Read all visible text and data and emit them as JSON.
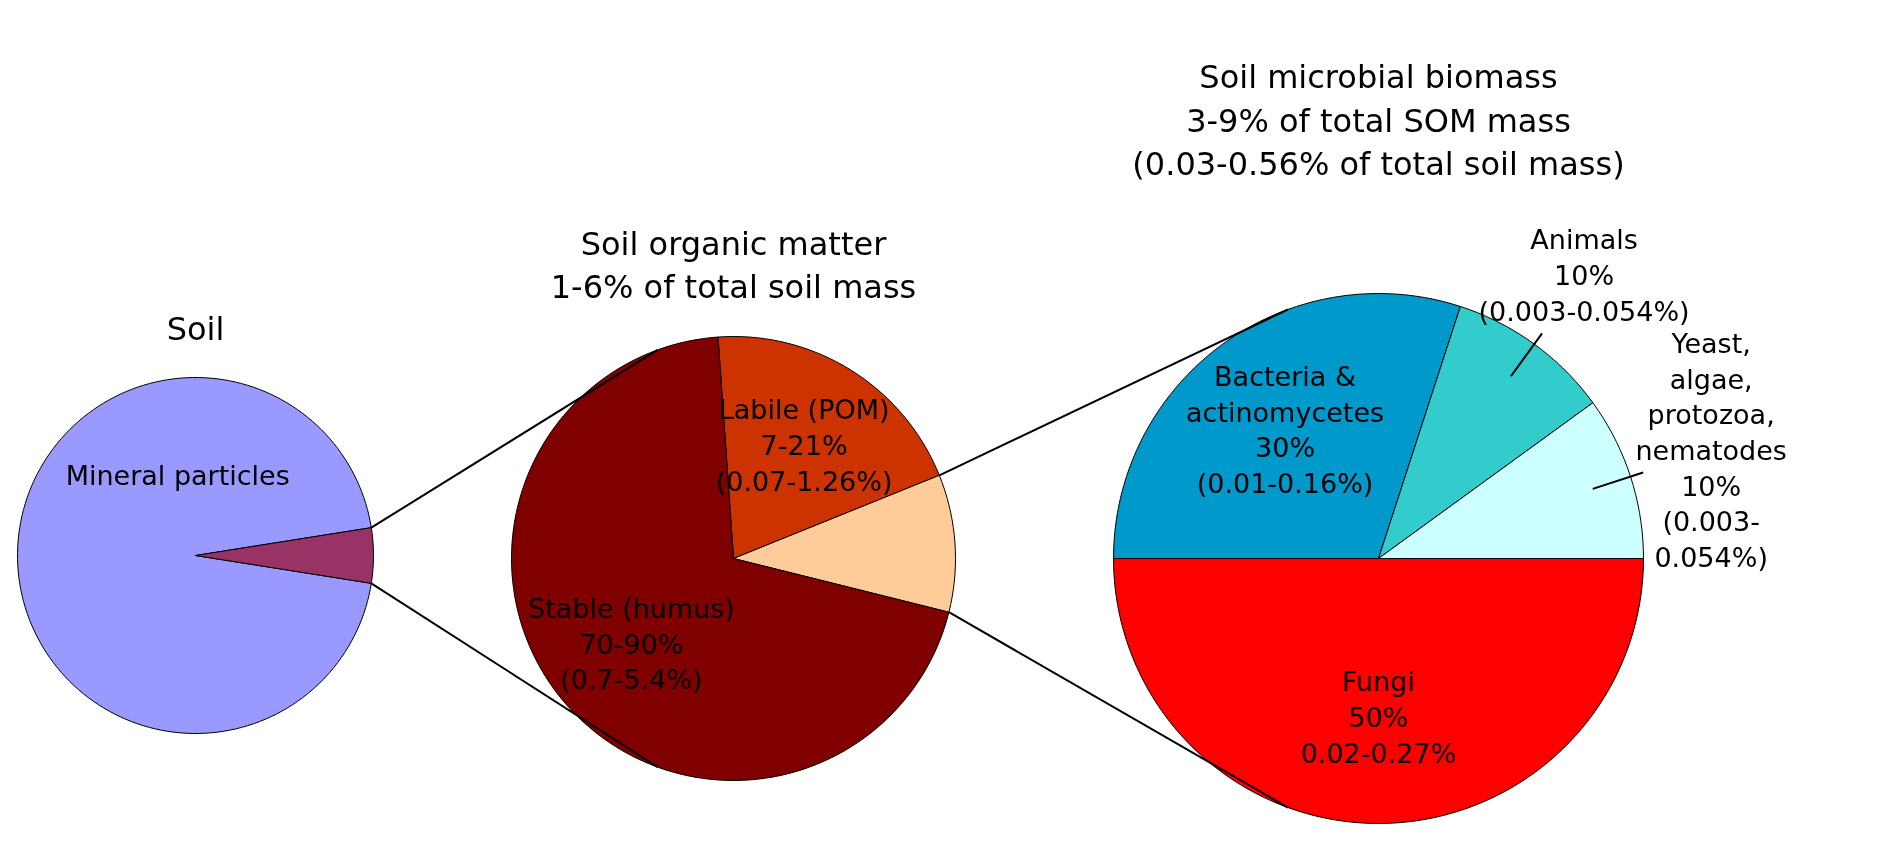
{
  "chart_data": [
    {
      "type": "pie",
      "title": "Soil",
      "categories": [
        "Mineral particles",
        null
      ],
      "values": [
        95,
        5
      ],
      "colors": [
        "#9999ff",
        "#993366"
      ]
    },
    {
      "type": "pie",
      "title": "Soil organic matter\n1-6% of total soil mass",
      "categories": [
        "Labile (POM)\n7-21%\n(0.07-1.26%)",
        null,
        "Stable (humus)\n70-90%\n(0.7-5.4%)"
      ],
      "values": [
        20,
        10,
        70
      ],
      "colors": [
        "#cc3300",
        "#ffcc99",
        "#800000"
      ]
    },
    {
      "type": "pie",
      "title": "Soil microbial biomass\n3-9% of total SOM mass\n(0.03-0.56% of total soil mass)",
      "categories": [
        "Bacteria &\nactinomycetes\n30%\n(0.01-0.16%)",
        "Animals\n10%\n(0.003-0.054%)",
        "Yeast,\nalgae,\nprotozoa,\nnematodes\n10%\n(0.003-\n0.054%)",
        "Fungi\n50%\n0.02-0.27%"
      ],
      "values": [
        30,
        10,
        10,
        50
      ],
      "colors": [
        "#0099cc",
        "#33cccc",
        "#ccffff",
        "#ff0000"
      ]
    }
  ]
}
